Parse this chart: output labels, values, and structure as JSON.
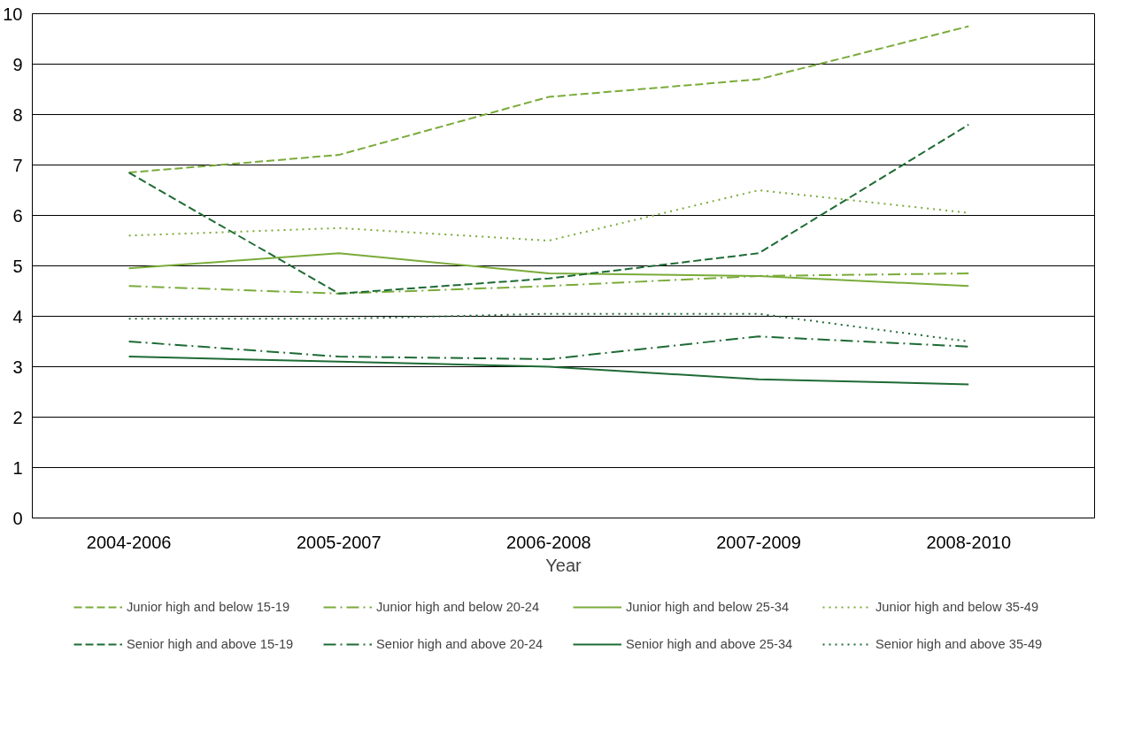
{
  "chart_data": {
    "type": "line",
    "xlabel": "Year",
    "categories": [
      "2004-2006",
      "2005-2007",
      "2006-2008",
      "2007-2009",
      "2008-2010"
    ],
    "ylim": [
      0,
      10
    ],
    "yticks": [
      0,
      1,
      2,
      3,
      4,
      5,
      6,
      7,
      8,
      9,
      10
    ],
    "grid": "y",
    "legend": "bottom",
    "series": [
      {
        "name": "Junior high and below 15-19",
        "color": "#7aab3a",
        "line_style": "dashed",
        "values": [
          6.85,
          7.2,
          8.35,
          8.7,
          9.75
        ]
      },
      {
        "name": "Junior high and below 20-24",
        "color": "#7aab3a",
        "line_style": "dashdot",
        "values": [
          4.6,
          4.45,
          4.6,
          4.8,
          4.85
        ]
      },
      {
        "name": "Junior high and below 25-34",
        "color": "#7aab3a",
        "line_style": "solid",
        "values": [
          4.95,
          5.25,
          4.85,
          4.8,
          4.6
        ]
      },
      {
        "name": "Junior high and below 35-49",
        "color": "#7aab3a",
        "line_style": "dotted",
        "values": [
          5.6,
          5.75,
          5.5,
          6.5,
          6.05
        ]
      },
      {
        "name": "Senior high and above 15-19",
        "color": "#1e6b34",
        "line_style": "dashed",
        "values": [
          6.85,
          4.45,
          4.75,
          5.25,
          7.8
        ]
      },
      {
        "name": "Senior high and above 20-24",
        "color": "#1e6b34",
        "line_style": "dashdot",
        "values": [
          3.5,
          3.2,
          3.15,
          3.6,
          3.4
        ]
      },
      {
        "name": "Senior high and above 25-34",
        "color": "#1e6b34",
        "line_style": "solid",
        "values": [
          3.2,
          3.1,
          3.0,
          2.75,
          2.65
        ]
      },
      {
        "name": "Senior high and above 35-49",
        "color": "#1e6b34",
        "line_style": "dotted",
        "values": [
          3.95,
          3.95,
          4.05,
          4.05,
          3.5
        ]
      }
    ]
  }
}
